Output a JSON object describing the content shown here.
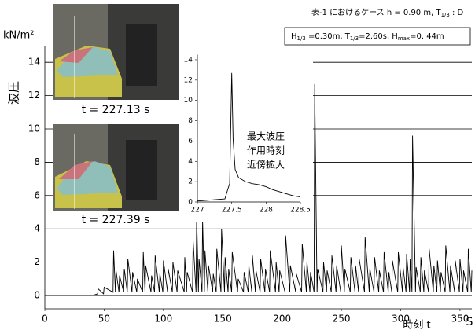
{
  "chart_data": [
    {
      "type": "line",
      "title": [
        "表-1 におけるケース  h = 0.90 m, T",
        "1/3",
        " : D"
      ],
      "box": [
        "H",
        "1/3",
        " =0.30m, T",
        "1/3",
        "=2.60s, H",
        "max",
        "=0. 44m"
      ],
      "ylabel": "波圧",
      "y_unit": "kN/m²",
      "xlabel": "時刻  t",
      "x_unit": "S",
      "captions": [
        "t = 227.13 s",
        "t = 227.39 s"
      ],
      "xlim": [
        0,
        360
      ],
      "xticks": [
        0,
        50,
        100,
        150,
        200,
        250,
        300,
        350
      ],
      "ylim": [
        -0.8,
        15
      ],
      "yticks": [
        0,
        2,
        4,
        6,
        8,
        10,
        12,
        14
      ],
      "grid": true,
      "series": [
        {
          "color": "#000000",
          "x": [
            0,
            40,
            44.5,
            45,
            49.5,
            50,
            57.5,
            58,
            59.5,
            60,
            62.5,
            63,
            66.5,
            67,
            69.5,
            70,
            73.5,
            74,
            77.5,
            78,
            82.5,
            83,
            84.5,
            85,
            89.5,
            90,
            92.5,
            93,
            96.5,
            97,
            99.5,
            100,
            103.5,
            104,
            107.5,
            108,
            111.5,
            112,
            117.5,
            118,
            119.5,
            120,
            124.5,
            125,
            127.5,
            128,
            129.5,
            130,
            132.5,
            133,
            134.5,
            135,
            137.5,
            138,
            141.5,
            142,
            144.5,
            145,
            148.5,
            149,
            151.5,
            152,
            154.5,
            155,
            157.5,
            158,
            162.5,
            163,
            167.5,
            168,
            171.5,
            172,
            174.5,
            175,
            177.5,
            178,
            181.5,
            182,
            185.5,
            186,
            189.5,
            190,
            194.5,
            195,
            197.5,
            198,
            202.5,
            203,
            206.5,
            207,
            211.5,
            212,
            216.5,
            217,
            220.5,
            221,
            223.5,
            224,
            227,
            227.5,
            229.5,
            230,
            234.5,
            235,
            237.5,
            238,
            241.5,
            242,
            245.5,
            246,
            249.5,
            250,
            252.5,
            253,
            257.5,
            258,
            261.5,
            262,
            264.5,
            265,
            269.5,
            270,
            273.5,
            274,
            277.5,
            278,
            281.5,
            282,
            285.5,
            286,
            289.5,
            290,
            292.5,
            293,
            297.5,
            298,
            301.5,
            302,
            304.5,
            305,
            307.5,
            308,
            309.5,
            310,
            312.5,
            313,
            316.5,
            317,
            319.5,
            320,
            323.5,
            324,
            327.5,
            328,
            330.5,
            331,
            333.5,
            334,
            337.5,
            338,
            341.5,
            342,
            345.5,
            346,
            349.5,
            350,
            352.5,
            353,
            356.5,
            357,
            359.5,
            360
          ],
          "values": [
            0,
            0,
            0.1,
            0.4,
            0.1,
            0.5,
            0.2,
            2.7,
            0.2,
            1.5,
            0.2,
            1.2,
            0.2,
            1.6,
            0.2,
            2.2,
            0.2,
            1.4,
            0.2,
            1.0,
            0.2,
            2.6,
            0.2,
            1.8,
            0.2,
            1.2,
            0.2,
            2.4,
            0.2,
            1.3,
            0.2,
            2.1,
            0.2,
            1.6,
            0.2,
            2.0,
            0.2,
            1.5,
            0.2,
            2.3,
            0.2,
            1.4,
            0.2,
            3.3,
            0.2,
            4.8,
            0.2,
            2.2,
            0.2,
            4.5,
            0.2,
            2.7,
            0.2,
            1.8,
            0.2,
            1.3,
            0.2,
            2.8,
            0.2,
            4.0,
            0.2,
            2.3,
            0.2,
            1.6,
            0.2,
            2.6,
            0.2,
            1.0,
            0.2,
            1.4,
            0.2,
            1.8,
            0.2,
            2.4,
            0.2,
            1.5,
            0.2,
            2.2,
            0.2,
            1.6,
            0.2,
            2.7,
            0.2,
            2.0,
            0.2,
            1.5,
            0.2,
            3.6,
            0.2,
            1.8,
            0.2,
            1.3,
            0.2,
            3.1,
            0.2,
            2.0,
            0.2,
            1.4,
            0.2,
            12.7,
            0.2,
            1.6,
            0.2,
            2.0,
            0.2,
            1.5,
            0.2,
            2.4,
            0.2,
            1.8,
            0.2,
            3.0,
            0.2,
            1.6,
            0.2,
            2.3,
            0.2,
            1.8,
            0.2,
            2.2,
            0.2,
            3.5,
            0.2,
            1.6,
            0.2,
            2.3,
            0.2,
            1.5,
            0.2,
            2.6,
            0.2,
            1.4,
            0.2,
            2.1,
            0.2,
            2.6,
            0.2,
            1.7,
            0.2,
            2.5,
            0.2,
            2.2,
            0.2,
            9.6,
            0.2,
            1.7,
            0.2,
            2.3,
            0.2,
            1.5,
            0.2,
            2.8,
            0.2,
            1.8,
            0.2,
            2.1,
            0.2,
            1.4,
            0.2,
            3.0,
            0.2,
            1.8,
            0.2,
            2.1,
            0.2,
            2.2,
            0.2,
            1.5,
            0.2,
            2.8,
            0.2,
            1.5
          ]
        }
      ]
    },
    {
      "type": "line",
      "annotation": [
        "最大波圧",
        "作用時刻",
        "近傍拡大"
      ],
      "xlim": [
        227,
        228.5
      ],
      "xticks": [
        227,
        227.5,
        228,
        228.5
      ],
      "ylim": [
        0,
        14.5
      ],
      "yticks": [
        0,
        2,
        4,
        6,
        8,
        10,
        12,
        14
      ],
      "grid": false,
      "series": [
        {
          "color": "#000000",
          "x": [
            227,
            227.2,
            227.4,
            227.45,
            227.47,
            227.5,
            227.52,
            227.55,
            227.6,
            227.7,
            227.8,
            227.9,
            228,
            228.1,
            228.2,
            228.3,
            228.4,
            228.5
          ],
          "values": [
            0.1,
            0.2,
            0.3,
            1.4,
            1.8,
            12.7,
            6.2,
            3.2,
            2.4,
            2.0,
            1.8,
            1.7,
            1.5,
            1.2,
            1.0,
            0.8,
            0.6,
            0.5
          ]
        }
      ]
    }
  ]
}
